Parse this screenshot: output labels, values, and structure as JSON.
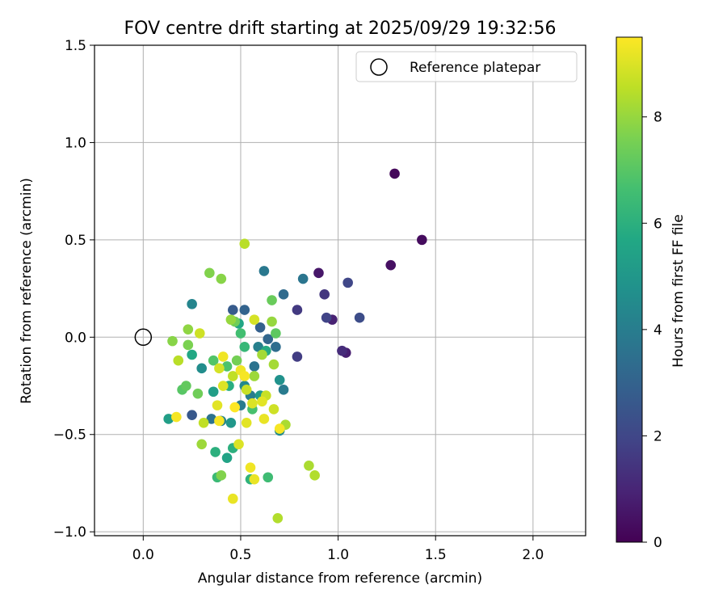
{
  "chart_data": {
    "type": "scatter",
    "title": "FOV centre drift starting at 2025/09/29 19:32:56",
    "xlabel": "Angular distance from reference (arcmin)",
    "ylabel": "Rotation from reference (arcmin)",
    "xlim": [
      -0.25,
      2.27
    ],
    "ylim": [
      -1.02,
      1.5
    ],
    "x_ticks": [
      "0.0",
      "0.5",
      "1.0",
      "1.5",
      "2.0"
    ],
    "x_tick_values": [
      0.0,
      0.5,
      1.0,
      1.5,
      2.0
    ],
    "y_ticks": [
      "−1.0",
      "−0.5",
      "0.0",
      "0.5",
      "1.0",
      "1.5"
    ],
    "y_tick_values": [
      -1.0,
      -0.5,
      0.0,
      0.5,
      1.0,
      1.5
    ],
    "grid": true,
    "legend": {
      "label": "Reference platepar",
      "position": "top-right"
    },
    "reference_point": {
      "x": 0.0,
      "y": 0.0
    },
    "colorbar": {
      "label": "Hours from first FF file",
      "range": [
        0,
        9.5
      ],
      "ticks": [
        "0",
        "2",
        "4",
        "6",
        "8"
      ],
      "tick_values": [
        0,
        2,
        4,
        6,
        8
      ],
      "colormap": "viridis"
    },
    "series": [
      {
        "name": "FOV centre drift",
        "points": [
          {
            "x": 1.29,
            "y": 0.84,
            "h": 0.2
          },
          {
            "x": 1.43,
            "y": 0.5,
            "h": 0.3
          },
          {
            "x": 1.27,
            "y": 0.37,
            "h": 0.4
          },
          {
            "x": 0.9,
            "y": 0.33,
            "h": 0.6
          },
          {
            "x": 1.04,
            "y": -0.08,
            "h": 0.8
          },
          {
            "x": 0.97,
            "y": 0.09,
            "h": 0.9
          },
          {
            "x": 1.02,
            "y": -0.07,
            "h": 1.2
          },
          {
            "x": 0.93,
            "y": 0.22,
            "h": 1.5
          },
          {
            "x": 0.79,
            "y": 0.14,
            "h": 1.6
          },
          {
            "x": 0.79,
            "y": -0.1,
            "h": 1.7
          },
          {
            "x": 0.94,
            "y": 0.1,
            "h": 1.9
          },
          {
            "x": 1.05,
            "y": 0.28,
            "h": 2.0
          },
          {
            "x": 1.11,
            "y": 0.1,
            "h": 2.2
          },
          {
            "x": 0.25,
            "y": -0.4,
            "h": 2.6
          },
          {
            "x": 0.46,
            "y": 0.14,
            "h": 2.7
          },
          {
            "x": 0.6,
            "y": 0.05,
            "h": 2.9
          },
          {
            "x": 0.52,
            "y": 0.14,
            "h": 3.0
          },
          {
            "x": 0.64,
            "y": -0.01,
            "h": 3.1
          },
          {
            "x": 0.72,
            "y": 0.22,
            "h": 3.3
          },
          {
            "x": 0.68,
            "y": -0.05,
            "h": 3.4
          },
          {
            "x": 0.35,
            "y": -0.42,
            "h": 3.6
          },
          {
            "x": 0.57,
            "y": -0.15,
            "h": 3.6
          },
          {
            "x": 0.82,
            "y": 0.3,
            "h": 3.7
          },
          {
            "x": 0.62,
            "y": 0.34,
            "h": 3.8
          },
          {
            "x": 0.5,
            "y": -0.35,
            "h": 3.9
          },
          {
            "x": 0.72,
            "y": -0.27,
            "h": 3.9
          },
          {
            "x": 0.55,
            "y": -0.3,
            "h": 4.0
          },
          {
            "x": 0.59,
            "y": -0.05,
            "h": 4.1
          },
          {
            "x": 0.4,
            "y": -0.43,
            "h": 4.2
          },
          {
            "x": 0.25,
            "y": 0.17,
            "h": 4.3
          },
          {
            "x": 0.52,
            "y": -0.25,
            "h": 4.4
          },
          {
            "x": 0.7,
            "y": -0.48,
            "h": 4.5
          },
          {
            "x": 0.3,
            "y": -0.16,
            "h": 4.6
          },
          {
            "x": 0.7,
            "y": -0.22,
            "h": 4.8
          },
          {
            "x": 0.45,
            "y": -0.44,
            "h": 5.0
          },
          {
            "x": 0.6,
            "y": -0.3,
            "h": 5.1
          },
          {
            "x": 0.36,
            "y": -0.28,
            "h": 5.3
          },
          {
            "x": 0.13,
            "y": -0.42,
            "h": 5.3
          },
          {
            "x": 0.43,
            "y": -0.62,
            "h": 5.5
          },
          {
            "x": 0.49,
            "y": 0.07,
            "h": 5.6
          },
          {
            "x": 0.25,
            "y": -0.09,
            "h": 5.7
          },
          {
            "x": 0.63,
            "y": -0.07,
            "h": 5.8
          },
          {
            "x": 0.44,
            "y": -0.25,
            "h": 5.9
          },
          {
            "x": 0.37,
            "y": -0.59,
            "h": 6.0
          },
          {
            "x": 0.46,
            "y": -0.57,
            "h": 6.0
          },
          {
            "x": 0.55,
            "y": -0.73,
            "h": 6.1
          },
          {
            "x": 0.52,
            "y": -0.05,
            "h": 6.3
          },
          {
            "x": 0.38,
            "y": -0.72,
            "h": 6.4
          },
          {
            "x": 0.64,
            "y": -0.72,
            "h": 6.5
          },
          {
            "x": 0.5,
            "y": 0.02,
            "h": 6.6
          },
          {
            "x": 0.56,
            "y": -0.37,
            "h": 6.7
          },
          {
            "x": 0.43,
            "y": -0.15,
            "h": 6.8
          },
          {
            "x": 0.36,
            "y": -0.12,
            "h": 6.9
          },
          {
            "x": 0.2,
            "y": -0.27,
            "h": 7.0
          },
          {
            "x": 0.68,
            "y": 0.02,
            "h": 7.1
          },
          {
            "x": 0.22,
            "y": -0.25,
            "h": 7.2
          },
          {
            "x": 0.66,
            "y": 0.19,
            "h": 7.3
          },
          {
            "x": 0.47,
            "y": 0.08,
            "h": 7.4
          },
          {
            "x": 0.28,
            "y": -0.29,
            "h": 7.4
          },
          {
            "x": 0.48,
            "y": -0.12,
            "h": 7.5
          },
          {
            "x": 0.23,
            "y": -0.04,
            "h": 7.6
          },
          {
            "x": 0.4,
            "y": -0.71,
            "h": 7.7
          },
          {
            "x": 0.34,
            "y": 0.33,
            "h": 7.7
          },
          {
            "x": 0.4,
            "y": 0.3,
            "h": 7.8
          },
          {
            "x": 0.15,
            "y": -0.02,
            "h": 7.8
          },
          {
            "x": 0.23,
            "y": 0.04,
            "h": 7.9
          },
          {
            "x": 0.45,
            "y": 0.09,
            "h": 8.0
          },
          {
            "x": 0.66,
            "y": 0.08,
            "h": 8.0
          },
          {
            "x": 0.57,
            "y": -0.2,
            "h": 8.1
          },
          {
            "x": 0.3,
            "y": -0.55,
            "h": 8.1
          },
          {
            "x": 0.61,
            "y": -0.09,
            "h": 8.2
          },
          {
            "x": 0.67,
            "y": -0.14,
            "h": 8.2
          },
          {
            "x": 0.73,
            "y": -0.45,
            "h": 8.3
          },
          {
            "x": 0.85,
            "y": -0.66,
            "h": 8.3
          },
          {
            "x": 0.88,
            "y": -0.71,
            "h": 8.4
          },
          {
            "x": 0.69,
            "y": -0.93,
            "h": 8.4
          },
          {
            "x": 0.52,
            "y": 0.48,
            "h": 8.5
          },
          {
            "x": 0.18,
            "y": -0.12,
            "h": 8.5
          },
          {
            "x": 0.31,
            "y": -0.44,
            "h": 8.6
          },
          {
            "x": 0.46,
            "y": -0.2,
            "h": 8.6
          },
          {
            "x": 0.53,
            "y": -0.27,
            "h": 8.7
          },
          {
            "x": 0.63,
            "y": -0.3,
            "h": 8.7
          },
          {
            "x": 0.67,
            "y": -0.37,
            "h": 8.8
          },
          {
            "x": 0.29,
            "y": 0.02,
            "h": 8.8
          },
          {
            "x": 0.39,
            "y": -0.16,
            "h": 8.9
          },
          {
            "x": 0.57,
            "y": 0.09,
            "h": 8.9
          },
          {
            "x": 0.41,
            "y": -0.25,
            "h": 9.0
          },
          {
            "x": 0.49,
            "y": -0.55,
            "h": 9.0
          },
          {
            "x": 0.56,
            "y": -0.34,
            "h": 9.0
          },
          {
            "x": 0.61,
            "y": -0.33,
            "h": 9.1
          },
          {
            "x": 0.38,
            "y": -0.35,
            "h": 9.1
          },
          {
            "x": 0.53,
            "y": -0.44,
            "h": 9.1
          },
          {
            "x": 0.62,
            "y": -0.42,
            "h": 9.2
          },
          {
            "x": 0.46,
            "y": -0.83,
            "h": 9.2
          },
          {
            "x": 0.57,
            "y": -0.73,
            "h": 9.2
          },
          {
            "x": 0.55,
            "y": -0.67,
            "h": 9.3
          },
          {
            "x": 0.41,
            "y": -0.1,
            "h": 9.3
          },
          {
            "x": 0.5,
            "y": -0.17,
            "h": 9.3
          },
          {
            "x": 0.39,
            "y": -0.43,
            "h": 9.4
          },
          {
            "x": 0.17,
            "y": -0.41,
            "h": 9.4
          },
          {
            "x": 0.52,
            "y": -0.2,
            "h": 9.4
          },
          {
            "x": 0.7,
            "y": -0.47,
            "h": 9.4
          },
          {
            "x": 0.47,
            "y": -0.36,
            "h": 9.5
          }
        ]
      }
    ]
  }
}
